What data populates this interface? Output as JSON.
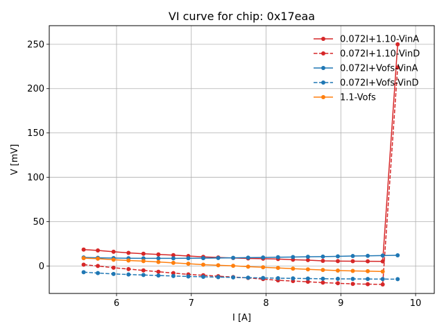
{
  "chart_data": {
    "type": "line",
    "title": "VI curve for chip: 0x17eaa",
    "xlabel": "I [A]",
    "ylabel": "V [mV]",
    "xlim": [
      5.1,
      10.25
    ],
    "ylim": [
      -31,
      271
    ],
    "xticks": [
      6,
      7,
      8,
      9,
      10
    ],
    "yticks": [
      0,
      50,
      100,
      150,
      200,
      250
    ],
    "grid": true,
    "legend_position": "top-right",
    "x": [
      5.56,
      5.75,
      5.96,
      6.16,
      6.36,
      6.56,
      6.76,
      6.96,
      7.16,
      7.36,
      7.56,
      7.76,
      7.96,
      8.16,
      8.36,
      8.56,
      8.76,
      8.96,
      9.16,
      9.36,
      9.56,
      9.76
    ],
    "series": [
      {
        "name": "0.072I+1.10-VinA",
        "color": "#d62728",
        "line_style": "solid",
        "x": [
          5.56,
          5.75,
          5.96,
          6.16,
          6.36,
          6.56,
          6.76,
          6.96,
          7.16,
          7.36,
          7.56,
          7.76,
          7.96,
          8.16,
          8.36,
          8.56,
          8.76,
          8.96,
          9.16,
          9.36,
          9.56,
          9.76
        ],
        "values": [
          18.5,
          17.5,
          16.0,
          14.8,
          13.8,
          13.0,
          12.2,
          11.2,
          10.3,
          9.6,
          9.0,
          8.5,
          8.2,
          7.8,
          7.0,
          6.6,
          5.8,
          5.5,
          5.4,
          5.3,
          5.2,
          250.0
        ]
      },
      {
        "name": "0.072I+1.10-VinD",
        "color": "#d62728",
        "line_style": "dashed",
        "x": [
          5.56,
          5.75,
          5.96,
          6.16,
          6.36,
          6.56,
          6.76,
          6.96,
          7.16,
          7.36,
          7.56,
          7.76,
          7.96,
          8.16,
          8.36,
          8.56,
          8.76,
          8.96,
          9.16,
          9.36,
          9.56,
          9.76
        ],
        "values": [
          1.5,
          0.0,
          -2.0,
          -3.5,
          -5.0,
          -6.5,
          -8.0,
          -9.5,
          -10.5,
          -11.5,
          -12.5,
          -13.5,
          -14.8,
          -16.2,
          -17.0,
          -17.8,
          -18.8,
          -19.5,
          -20.2,
          -20.5,
          -20.8,
          224.0
        ]
      },
      {
        "name": "0.072I+Vofs-VinA",
        "color": "#1f77b4",
        "line_style": "solid",
        "x": [
          5.56,
          5.75,
          5.96,
          6.16,
          6.36,
          6.56,
          6.76,
          6.96,
          7.16,
          7.36,
          7.56,
          7.76,
          7.96,
          8.16,
          8.36,
          8.56,
          8.76,
          8.96,
          9.16,
          9.36,
          9.56,
          9.76
        ],
        "values": [
          9.6,
          9.2,
          8.9,
          8.7,
          8.6,
          8.6,
          8.6,
          8.7,
          8.8,
          9.0,
          9.2,
          9.4,
          9.6,
          9.9,
          10.1,
          10.4,
          10.6,
          10.9,
          11.2,
          11.4,
          11.7,
          12.0
        ]
      },
      {
        "name": "0.072I+Vofs-VinD",
        "color": "#1f77b4",
        "line_style": "dashed",
        "x": [
          5.56,
          5.75,
          5.96,
          6.16,
          6.36,
          6.56,
          6.76,
          6.96,
          7.16,
          7.36,
          7.56,
          7.76,
          7.96,
          8.16,
          8.36,
          8.56,
          8.76,
          8.96,
          9.16,
          9.36,
          9.56,
          9.76
        ],
        "values": [
          -7.0,
          -8.0,
          -9.0,
          -9.6,
          -10.2,
          -10.8,
          -11.3,
          -11.8,
          -12.2,
          -12.6,
          -12.9,
          -13.2,
          -13.5,
          -13.8,
          -14.0,
          -14.2,
          -14.4,
          -14.5,
          -14.6,
          -14.7,
          -14.8,
          -14.9
        ]
      },
      {
        "name": "1.1-Vofs",
        "color": "#ff7f0e",
        "line_style": "solid",
        "x": [
          5.56,
          5.75,
          5.96,
          6.16,
          6.36,
          6.56,
          6.76,
          6.96,
          7.16,
          7.36,
          7.56,
          7.76,
          7.96,
          8.16,
          8.36,
          8.56,
          8.76,
          8.96,
          9.16,
          9.36,
          9.56
        ],
        "values": [
          8.8,
          8.2,
          7.0,
          6.2,
          5.5,
          4.5,
          3.5,
          2.5,
          1.5,
          0.8,
          0.2,
          -0.8,
          -1.5,
          -2.2,
          -3.0,
          -3.8,
          -4.5,
          -5.2,
          -5.6,
          -5.9,
          -6.3
        ]
      }
    ]
  }
}
